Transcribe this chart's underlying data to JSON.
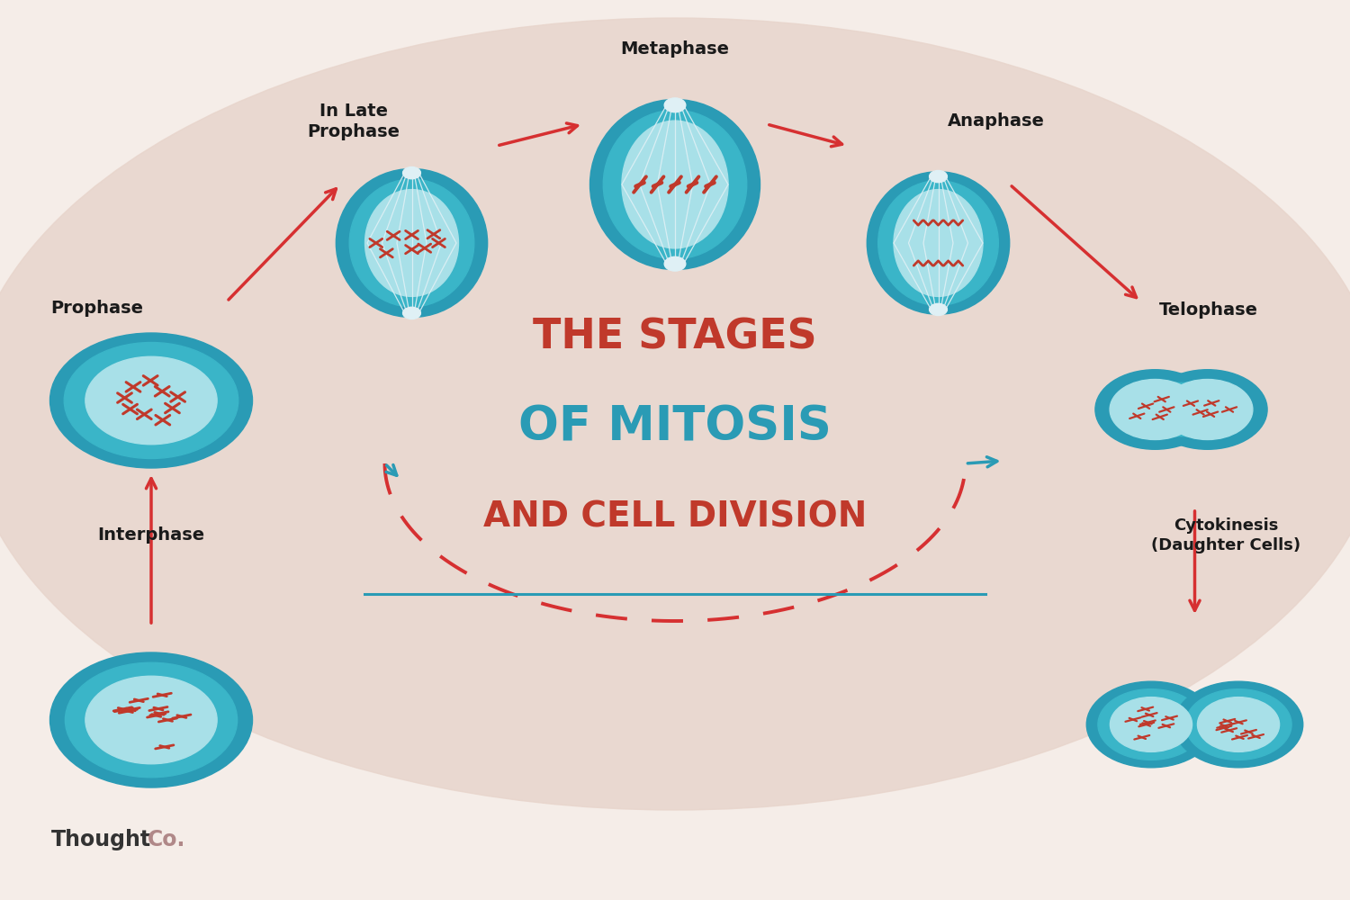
{
  "bg_color": "#f5ede8",
  "blob_color": "#e8d5cc",
  "teal_dark": "#2a9bb5",
  "teal_mid": "#3ab5c8",
  "teal_light": "#7dd4e0",
  "teal_inner": "#a8e0e8",
  "red_color": "#c0392b",
  "arrow_red": "#d63031",
  "arrow_teal": "#2a9bb5",
  "title_line1": "THE STAGES",
  "title_line2": "OF MITOSIS",
  "title_line3": "AND CELL DIVISION",
  "watermark_black": "Thought",
  "watermark_pink": "Co.",
  "label_interphase": "Interphase",
  "label_prophase": "Prophase",
  "label_late_prophase": "In Late\nProphase",
  "label_metaphase": "Metaphase",
  "label_anaphase": "Anaphase",
  "label_telophase": "Telophase",
  "label_cytokinesis": "Cytokinesis\n(Daughter Cells)"
}
